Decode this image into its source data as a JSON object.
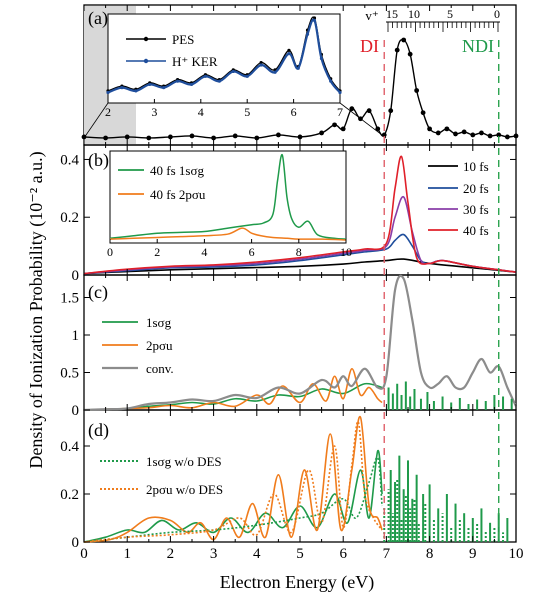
{
  "colors": {
    "black": "#000000",
    "blue": "#1f4e9c",
    "purple": "#8a3ea8",
    "red": "#e0202a",
    "green": "#1f9a4a",
    "orange": "#f07c1c",
    "gray": "#8c8c8c",
    "di_line": "#e0606a",
    "ndi_line": "#2aa24e"
  },
  "figure": {
    "xlabel": "Electron Energy (eV)",
    "ylabel": "Density of Ionization Probability (10⁻² a.u.)",
    "xlim": [
      0,
      10
    ],
    "xticks": [
      "0",
      "1",
      "2",
      "3",
      "4",
      "5",
      "6",
      "7",
      "8",
      "9",
      "10"
    ],
    "di_label": "DI",
    "ndi_label": "NDI",
    "di_x": 6.95,
    "ndi_x": 9.6
  },
  "chart_data": [
    {
      "panel_label": "(a)",
      "type": "line",
      "series": [
        {
          "name": "PES",
          "color": "black",
          "markers": true,
          "x": [
            0.0,
            0.5,
            1.0,
            1.5,
            2.0,
            2.5,
            3.0,
            3.5,
            4.0,
            4.5,
            5.0,
            5.5,
            5.8,
            6.0,
            6.2,
            6.4,
            6.6,
            6.8,
            6.95,
            7.1,
            7.25,
            7.4,
            7.55,
            7.7,
            7.85,
            8.0,
            8.2,
            8.4,
            8.6,
            8.8,
            9.0,
            9.2,
            9.4,
            9.6,
            9.8,
            10.0
          ],
          "y": [
            0.04,
            0.03,
            0.04,
            0.03,
            0.04,
            0.05,
            0.03,
            0.05,
            0.03,
            0.06,
            0.04,
            0.08,
            0.16,
            0.12,
            0.32,
            0.22,
            0.3,
            0.12,
            0.06,
            0.3,
            0.9,
            1.0,
            0.86,
            0.5,
            0.28,
            0.12,
            0.08,
            0.12,
            0.07,
            0.09,
            0.06,
            0.08,
            0.05,
            0.06,
            0.04,
            0.05
          ]
        }
      ],
      "v_plus_label": "v⁺",
      "v_plus_ticks": [
        "15",
        "10",
        "5",
        "0"
      ],
      "inset": {
        "xlim": [
          2,
          7
        ],
        "xticks": [
          "2",
          "3",
          "4",
          "5",
          "6",
          "7"
        ],
        "series": [
          {
            "name": "PES",
            "color": "black",
            "x": [
              2.0,
              2.3,
              2.6,
              2.9,
              3.2,
              3.5,
              3.8,
              4.1,
              4.4,
              4.7,
              5.0,
              5.3,
              5.6,
              5.9,
              6.1,
              6.3,
              6.45,
              6.6,
              6.8,
              7.0
            ],
            "y": [
              0.1,
              0.16,
              0.12,
              0.2,
              0.16,
              0.24,
              0.2,
              0.3,
              0.24,
              0.36,
              0.3,
              0.45,
              0.36,
              0.6,
              0.4,
              0.85,
              1.0,
              0.55,
              0.25,
              0.1
            ]
          },
          {
            "name": "H⁺ KER",
            "color": "blue",
            "x": [
              2.0,
              2.3,
              2.6,
              2.9,
              3.2,
              3.5,
              3.8,
              4.1,
              4.4,
              4.7,
              5.0,
              5.3,
              5.6,
              5.9,
              6.1,
              6.3,
              6.45,
              6.6,
              6.8,
              7.0
            ],
            "y": [
              0.08,
              0.14,
              0.1,
              0.18,
              0.14,
              0.22,
              0.18,
              0.28,
              0.22,
              0.34,
              0.28,
              0.42,
              0.33,
              0.56,
              0.38,
              0.8,
              0.97,
              0.5,
              0.22,
              0.08
            ]
          }
        ]
      }
    },
    {
      "panel_label": "(b)",
      "type": "line",
      "ylim": [
        0,
        0.45
      ],
      "yticks": [
        0,
        0.2,
        0.4
      ],
      "ytick_labels": [
        "0",
        "0.2",
        "0.4"
      ],
      "series": [
        {
          "name": "10 fs",
          "color": "black",
          "x": [
            0,
            1,
            2,
            3,
            4,
            5,
            6,
            6.5,
            7,
            7.4,
            8,
            9,
            10
          ],
          "y": [
            0.005,
            0.012,
            0.018,
            0.022,
            0.026,
            0.03,
            0.038,
            0.045,
            0.05,
            0.055,
            0.04,
            0.025,
            0.01
          ]
        },
        {
          "name": "20 fs",
          "color": "blue",
          "x": [
            0,
            1,
            2,
            3,
            4,
            5,
            6,
            6.5,
            7,
            7.2,
            7.4,
            7.6,
            7.8,
            8,
            8.3,
            9,
            10
          ],
          "y": [
            0.005,
            0.015,
            0.025,
            0.028,
            0.035,
            0.05,
            0.07,
            0.08,
            0.09,
            0.12,
            0.14,
            0.1,
            0.05,
            0.04,
            0.05,
            0.03,
            0.01
          ]
        },
        {
          "name": "30 fs",
          "color": "purple",
          "x": [
            0,
            1,
            2,
            3,
            4,
            5,
            6,
            6.5,
            7,
            7.2,
            7.4,
            7.6,
            7.8,
            8,
            8.3,
            9,
            10
          ],
          "y": [
            0.005,
            0.018,
            0.028,
            0.032,
            0.04,
            0.055,
            0.075,
            0.085,
            0.1,
            0.2,
            0.27,
            0.15,
            0.05,
            0.04,
            0.05,
            0.03,
            0.01
          ]
        },
        {
          "name": "40 fs",
          "color": "red",
          "x": [
            0,
            1,
            2,
            3,
            4,
            5,
            6,
            6.5,
            7,
            7.2,
            7.35,
            7.5,
            7.7,
            8,
            8.3,
            9,
            10
          ],
          "y": [
            0.005,
            0.02,
            0.03,
            0.035,
            0.045,
            0.06,
            0.08,
            0.09,
            0.11,
            0.3,
            0.41,
            0.25,
            0.06,
            0.04,
            0.05,
            0.03,
            0.01
          ]
        }
      ],
      "inset": {
        "xlim": [
          0,
          10
        ],
        "xticks": [
          "0",
          "2",
          "4",
          "6",
          "8",
          "10"
        ],
        "series": [
          {
            "name": "40 fs 1sσg",
            "color": "green",
            "x": [
              0,
              1,
              2,
              3,
              4,
              5,
              6,
              6.5,
              6.9,
              7.1,
              7.3,
              7.5,
              7.7,
              8,
              8.4,
              8.8,
              9.5,
              10
            ],
            "y": [
              0.02,
              0.05,
              0.08,
              0.09,
              0.1,
              0.14,
              0.18,
              0.2,
              0.3,
              0.7,
              1.0,
              0.5,
              0.25,
              0.15,
              0.22,
              0.06,
              0.02,
              0.01
            ]
          },
          {
            "name": "40 fs 2pσu",
            "color": "orange",
            "x": [
              0,
              1,
              2,
              3,
              4,
              5,
              5.6,
              6,
              6.4,
              6.9,
              7.5,
              8,
              9,
              10
            ],
            "y": [
              0.01,
              0.02,
              0.03,
              0.04,
              0.05,
              0.07,
              0.14,
              0.08,
              0.05,
              0.03,
              0.02,
              0.01,
              0.01,
              0.0
            ]
          }
        ]
      }
    },
    {
      "panel_label": "(c)",
      "type": "line",
      "ylim": [
        0,
        1.8
      ],
      "yticks": [
        0,
        0.5,
        1,
        1.5
      ],
      "ytick_labels": [
        "0",
        "0.5",
        "1",
        "1.5"
      ],
      "series": [
        {
          "name": "1sσg",
          "color": "green",
          "x": [
            0,
            0.5,
            1,
            1.5,
            2,
            2.5,
            3,
            3.5,
            4,
            4.5,
            5,
            5.5,
            6,
            6.5,
            6.9
          ],
          "y": [
            0.0,
            0.01,
            0.02,
            0.05,
            0.07,
            0.1,
            0.08,
            0.15,
            0.12,
            0.2,
            0.18,
            0.28,
            0.22,
            0.35,
            0.3
          ]
        },
        {
          "name": "2pσu",
          "color": "orange",
          "x": [
            0,
            1,
            1.5,
            2,
            2.5,
            3,
            3.5,
            4,
            4.3,
            4.6,
            5,
            5.3,
            5.6,
            5.8,
            6,
            6.2,
            6.4,
            6.6,
            6.8,
            6.9
          ],
          "y": [
            0.0,
            0.02,
            0.03,
            0.06,
            0.03,
            0.1,
            0.05,
            0.2,
            0.08,
            0.32,
            0.1,
            0.35,
            0.12,
            0.45,
            0.15,
            0.55,
            0.2,
            0.3,
            0.15,
            0.1
          ]
        },
        {
          "name": "conv.",
          "color": "gray",
          "x": [
            0,
            0.5,
            1,
            1.5,
            2,
            2.5,
            3,
            3.5,
            4,
            4.5,
            5,
            5.5,
            5.8,
            6,
            6.2,
            6.5,
            6.8,
            7,
            7.2,
            7.4,
            7.6,
            7.8,
            8,
            8.2,
            8.4,
            8.6,
            8.8,
            9,
            9.2,
            9.4,
            9.6,
            9.8,
            10
          ],
          "y": [
            0.0,
            0.01,
            0.02,
            0.08,
            0.1,
            0.14,
            0.12,
            0.2,
            0.16,
            0.3,
            0.22,
            0.4,
            0.3,
            0.45,
            0.32,
            0.55,
            0.3,
            0.45,
            1.6,
            1.75,
            1.2,
            0.5,
            0.3,
            0.35,
            0.45,
            0.3,
            0.3,
            0.5,
            0.68,
            0.5,
            0.58,
            0.3,
            0.05
          ]
        }
      ],
      "sticks": {
        "color": "green",
        "x": [
          7.05,
          7.15,
          7.25,
          7.35,
          7.45,
          7.55,
          7.65,
          7.8,
          7.95,
          8.1,
          8.3,
          8.5,
          8.7,
          8.9,
          9.1,
          9.3,
          9.5,
          9.7,
          9.9
        ],
        "y": [
          0.3,
          0.22,
          0.35,
          0.2,
          0.38,
          0.18,
          0.28,
          0.15,
          0.24,
          0.12,
          0.18,
          0.1,
          0.16,
          0.08,
          0.14,
          0.12,
          0.2,
          0.18,
          0.15
        ]
      }
    },
    {
      "panel_label": "(d)",
      "type": "line",
      "ylim": [
        0,
        0.55
      ],
      "yticks": [
        0,
        0.2,
        0.4
      ],
      "ytick_labels": [
        "0",
        "0.2",
        "0.4"
      ],
      "series": [
        {
          "name": "1sσg",
          "color": "green",
          "style": "solid",
          "x": [
            0,
            0.5,
            1,
            1.4,
            1.8,
            2.2,
            2.6,
            3,
            3.4,
            3.8,
            4.2,
            4.6,
            5,
            5.4,
            5.8,
            6.1,
            6.4,
            6.6,
            6.8,
            6.9
          ],
          "y": [
            0.0,
            0.02,
            0.05,
            0.04,
            0.09,
            0.05,
            0.08,
            0.04,
            0.1,
            0.04,
            0.12,
            0.06,
            0.15,
            0.06,
            0.2,
            0.08,
            0.3,
            0.1,
            0.38,
            0.2
          ]
        },
        {
          "name": "2pσu",
          "color": "orange",
          "style": "solid",
          "x": [
            0,
            0.6,
            1,
            1.5,
            2,
            2.4,
            2.7,
            3,
            3.3,
            3.6,
            3.9,
            4.2,
            4.5,
            4.8,
            5.1,
            5.4,
            5.7,
            5.95,
            6.2,
            6.4,
            6.6,
            6.8,
            6.9
          ],
          "y": [
            0.0,
            0.01,
            0.04,
            0.1,
            0.09,
            0.04,
            0.08,
            0.01,
            0.1,
            0.02,
            0.16,
            0.02,
            0.28,
            0.02,
            0.3,
            0.05,
            0.45,
            0.05,
            0.3,
            0.52,
            0.15,
            0.1,
            0.05
          ]
        },
        {
          "name": "1sσg w/o DES",
          "color": "green",
          "style": "dotted",
          "x": [
            0,
            1,
            2,
            3,
            4,
            5,
            5.5,
            6,
            6.3,
            6.6,
            6.8,
            6.9
          ],
          "y": [
            0.0,
            0.02,
            0.04,
            0.05,
            0.07,
            0.1,
            0.12,
            0.18,
            0.1,
            0.25,
            0.35,
            0.15
          ]
        },
        {
          "name": "2pσu w/o DES",
          "color": "orange",
          "style": "dotted",
          "x": [
            0,
            1,
            2,
            3,
            3.6,
            4,
            4.4,
            4.8,
            5.2,
            5.5,
            5.8,
            6,
            6.2,
            6.35,
            6.5,
            6.7,
            6.9
          ],
          "y": [
            0.0,
            0.02,
            0.03,
            0.05,
            0.1,
            0.03,
            0.2,
            0.04,
            0.3,
            0.08,
            0.4,
            0.06,
            0.32,
            0.5,
            0.2,
            0.1,
            0.05
          ]
        }
      ],
      "sticks": [
        {
          "color": "green",
          "style": "solid",
          "x": [
            7.1,
            7.2,
            7.3,
            7.4,
            7.5,
            7.6,
            7.7,
            7.85,
            8.0,
            8.2,
            8.4,
            8.6,
            8.8,
            9.0,
            9.2,
            9.4,
            9.6,
            9.8
          ],
          "y": [
            0.3,
            0.25,
            0.36,
            0.22,
            0.34,
            0.18,
            0.28,
            0.2,
            0.24,
            0.14,
            0.2,
            0.16,
            0.12,
            0.1,
            0.14,
            0.08,
            0.12,
            0.1
          ]
        },
        {
          "color": "green",
          "style": "dotted",
          "x": [
            6.95,
            7.05,
            7.15,
            7.25,
            7.35,
            7.45,
            7.55,
            7.65,
            7.75,
            7.9,
            8.1,
            8.3,
            8.5,
            8.7,
            8.9,
            9.1,
            9.3,
            9.5,
            9.7
          ],
          "y": [
            0.15,
            0.22,
            0.12,
            0.26,
            0.1,
            0.2,
            0.14,
            0.18,
            0.08,
            0.16,
            0.1,
            0.12,
            0.06,
            0.1,
            0.06,
            0.08,
            0.05,
            0.06,
            0.04
          ]
        }
      ]
    }
  ]
}
